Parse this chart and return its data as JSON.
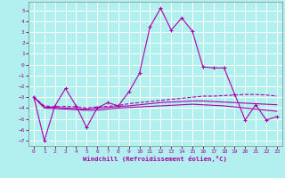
{
  "xlabel": "Windchill (Refroidissement éolien,°C)",
  "background_color": "#b2f0f0",
  "grid_color": "#ffffff",
  "line_color": "#aa00aa",
  "x": [
    0,
    1,
    2,
    3,
    4,
    5,
    6,
    7,
    8,
    9,
    10,
    11,
    12,
    13,
    14,
    15,
    16,
    17,
    18,
    19,
    20,
    21,
    22,
    23
  ],
  "series1": [
    -3.0,
    -7.0,
    -3.8,
    -2.2,
    -3.8,
    -5.8,
    -4.0,
    -3.5,
    -3.8,
    -2.5,
    -0.8,
    3.5,
    5.2,
    3.2,
    4.3,
    3.1,
    -0.2,
    -0.3,
    -0.3,
    -2.7,
    -5.1,
    -3.7,
    -5.1,
    -4.8
  ],
  "series2": [
    -3.0,
    -3.8,
    -3.9,
    -3.85,
    -3.9,
    -4.0,
    -3.9,
    -3.85,
    -3.75,
    -3.6,
    -3.5,
    -3.4,
    -3.3,
    -3.2,
    -3.1,
    -3.0,
    -2.9,
    -2.9,
    -2.85,
    -2.8,
    -2.75,
    -2.75,
    -2.8,
    -2.9
  ],
  "series3": [
    -3.0,
    -3.9,
    -3.95,
    -4.0,
    -4.05,
    -4.1,
    -4.0,
    -3.95,
    -3.85,
    -3.8,
    -3.7,
    -3.6,
    -3.5,
    -3.45,
    -3.4,
    -3.35,
    -3.35,
    -3.4,
    -3.45,
    -3.5,
    -3.55,
    -3.6,
    -3.65,
    -3.7
  ],
  "series4": [
    -3.0,
    -4.0,
    -4.05,
    -4.1,
    -4.15,
    -4.2,
    -4.2,
    -4.1,
    -4.0,
    -3.95,
    -3.9,
    -3.85,
    -3.8,
    -3.75,
    -3.7,
    -3.65,
    -3.7,
    -3.75,
    -3.8,
    -3.9,
    -4.0,
    -4.1,
    -4.2,
    -4.3
  ],
  "ylim": [
    -7.5,
    5.8
  ],
  "xlim": [
    -0.5,
    23.5
  ],
  "yticks": [
    5,
    4,
    3,
    2,
    1,
    0,
    -1,
    -2,
    -3,
    -4,
    -5,
    -6,
    -7
  ],
  "xticks": [
    0,
    1,
    2,
    3,
    4,
    5,
    6,
    7,
    8,
    9,
    10,
    11,
    12,
    13,
    14,
    15,
    16,
    17,
    18,
    19,
    20,
    21,
    22,
    23
  ]
}
